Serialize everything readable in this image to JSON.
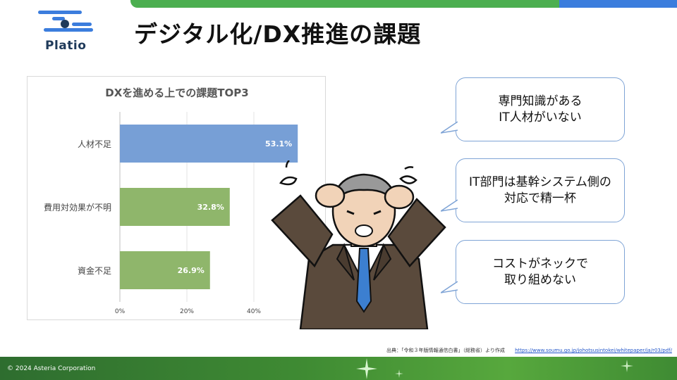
{
  "logo": {
    "text": "Platio"
  },
  "page": {
    "title": "デジタル化/DX推進の課題"
  },
  "chart_data": {
    "type": "bar",
    "orientation": "horizontal",
    "title": "DXを進める上での課題TOP3",
    "categories": [
      "人材不足",
      "費用対効果が不明",
      "資金不足"
    ],
    "values": [
      53.1,
      32.8,
      26.9
    ],
    "value_labels": [
      "53.1%",
      "32.8%",
      "26.9%"
    ],
    "colors": [
      "#779fd6",
      "#8fb66b",
      "#8fb66b"
    ],
    "xlim": [
      0,
      60
    ],
    "x_ticks": [
      0,
      20,
      40
    ],
    "x_tick_labels": [
      "0%",
      "20%",
      "40%"
    ],
    "grid": true
  },
  "bubbles": [
    {
      "text": "専門知識がある\nIT人材がいない"
    },
    {
      "text": "IT部門は基幹システム側の\n対応で精一杯"
    },
    {
      "text": "コストがネックで\n取り組めない"
    }
  ],
  "source": {
    "text": "出典：「令和３年版情報通信白書」（総務省）より作成",
    "link": "https://www.soumu.go.jp/johotsusintokei/whitepaper/ja/r03/pdf/"
  },
  "footer": {
    "copyright": "© 2024 Asteria Corporation"
  }
}
